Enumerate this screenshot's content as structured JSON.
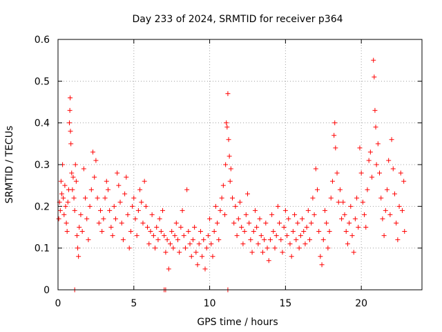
{
  "chart_data": {
    "type": "scatter",
    "title": "Day 233 of 2024, SRMTID for receiver p364",
    "xlabel": "GPS time / hours",
    "ylabel": "SRMTID / TECUs",
    "xlim": [
      0,
      24
    ],
    "ylim": [
      0,
      0.6
    ],
    "xticks": [
      0,
      5,
      10,
      15,
      20
    ],
    "xtick_labels": [
      "0",
      "5",
      "10",
      "15",
      "20"
    ],
    "yticks": [
      0,
      0.1,
      0.2,
      0.3,
      0.4,
      0.5,
      0.6
    ],
    "ytick_labels": [
      "0",
      "0.1",
      "0.2",
      "0.3",
      "0.4",
      "0.5",
      "0.6"
    ],
    "grid": true,
    "marker": "plus",
    "color": "#ff0000",
    "series": [
      {
        "name": "SRMTID",
        "points": [
          [
            0.05,
            0.17
          ],
          [
            0.1,
            0.21
          ],
          [
            0.15,
            0.19
          ],
          [
            0.2,
            0.26
          ],
          [
            0.25,
            0.23
          ],
          [
            0.3,
            0.3
          ],
          [
            0.35,
            0.22
          ],
          [
            0.4,
            0.18
          ],
          [
            0.45,
            0.25
          ],
          [
            0.5,
            0.2
          ],
          [
            0.55,
            0.16
          ],
          [
            0.6,
            0.14
          ],
          [
            0.65,
            0.21
          ],
          [
            0.7,
            0.24
          ],
          [
            0.75,
            0.4
          ],
          [
            0.78,
            0.43
          ],
          [
            0.8,
            0.46
          ],
          [
            0.82,
            0.38
          ],
          [
            0.85,
            0.35
          ],
          [
            0.9,
            0.28
          ],
          [
            0.95,
            0.24
          ],
          [
            1.0,
            0.27
          ],
          [
            1.05,
            0.22
          ],
          [
            1.1,
            0.19
          ],
          [
            1.15,
            0.3
          ],
          [
            1.2,
            0.26
          ],
          [
            1.25,
            0.13
          ],
          [
            1.3,
            0.1
          ],
          [
            1.35,
            0.08
          ],
          [
            1.4,
            0.15
          ],
          [
            1.5,
            0.18
          ],
          [
            1.6,
            0.14
          ],
          [
            1.7,
            0.29
          ],
          [
            1.8,
            0.22
          ],
          [
            1.9,
            0.17
          ],
          [
            2.0,
            0.12
          ],
          [
            2.1,
            0.2
          ],
          [
            2.2,
            0.24
          ],
          [
            2.3,
            0.33
          ],
          [
            2.4,
            0.27
          ],
          [
            2.5,
            0.31
          ],
          [
            2.6,
            0.22
          ],
          [
            2.7,
            0.16
          ],
          [
            2.8,
            0.19
          ],
          [
            2.9,
            0.14
          ],
          [
            3.0,
            0.17
          ],
          [
            3.1,
            0.22
          ],
          [
            3.2,
            0.26
          ],
          [
            3.3,
            0.24
          ],
          [
            3.4,
            0.19
          ],
          [
            3.5,
            0.15
          ],
          [
            3.6,
            0.13
          ],
          [
            3.7,
            0.2
          ],
          [
            3.8,
            0.17
          ],
          [
            3.9,
            0.28
          ],
          [
            4.0,
            0.25
          ],
          [
            4.1,
            0.21
          ],
          [
            4.2,
            0.16
          ],
          [
            4.3,
            0.12
          ],
          [
            4.4,
            0.23
          ],
          [
            4.5,
            0.27
          ],
          [
            4.6,
            0.18
          ],
          [
            4.7,
            0.1
          ],
          [
            4.8,
            0.14
          ],
          [
            4.9,
            0.2
          ],
          [
            5.0,
            0.22
          ],
          [
            5.1,
            0.17
          ],
          [
            5.2,
            0.13
          ],
          [
            5.3,
            0.19
          ],
          [
            5.4,
            0.24
          ],
          [
            5.5,
            0.21
          ],
          [
            5.6,
            0.16
          ],
          [
            5.7,
            0.26
          ],
          [
            5.8,
            0.2
          ],
          [
            5.9,
            0.15
          ],
          [
            6.0,
            0.11
          ],
          [
            6.1,
            0.14
          ],
          [
            6.2,
            0.18
          ],
          [
            6.3,
            0.13
          ],
          [
            6.4,
            0.1
          ],
          [
            6.5,
            0.15
          ],
          [
            6.6,
            0.12
          ],
          [
            6.7,
            0.17
          ],
          [
            6.8,
            0.14
          ],
          [
            6.9,
            0.19
          ],
          [
            7.0,
            0.13
          ],
          [
            7.1,
            0.09
          ],
          [
            7.2,
            0.12
          ],
          [
            7.3,
            0.05
          ],
          [
            7.4,
            0.11
          ],
          [
            7.5,
            0.14
          ],
          [
            7.6,
            0.1
          ],
          [
            7.7,
            0.13
          ],
          [
            7.8,
            0.16
          ],
          [
            7.9,
            0.12
          ],
          [
            8.0,
            0.09
          ],
          [
            8.1,
            0.15
          ],
          [
            8.2,
            0.19
          ],
          [
            8.3,
            0.13
          ],
          [
            8.4,
            0.1
          ],
          [
            8.5,
            0.24
          ],
          [
            8.6,
            0.14
          ],
          [
            8.7,
            0.11
          ],
          [
            8.8,
            0.08
          ],
          [
            8.9,
            0.12
          ],
          [
            9.0,
            0.15
          ],
          [
            9.1,
            0.09
          ],
          [
            9.2,
            0.06
          ],
          [
            9.3,
            0.11
          ],
          [
            9.4,
            0.14
          ],
          [
            9.5,
            0.08
          ],
          [
            9.6,
            0.12
          ],
          [
            9.7,
            0.05
          ],
          [
            9.8,
            0.1
          ],
          [
            9.9,
            0.13
          ],
          [
            10.0,
            0.17
          ],
          [
            10.1,
            0.11
          ],
          [
            10.2,
            0.08
          ],
          [
            10.3,
            0.14
          ],
          [
            10.4,
            0.2
          ],
          [
            10.5,
            0.16
          ],
          [
            10.6,
            0.12
          ],
          [
            10.7,
            0.19
          ],
          [
            10.8,
            0.22
          ],
          [
            10.9,
            0.25
          ],
          [
            11.0,
            0.18
          ],
          [
            11.05,
            0.3
          ],
          [
            11.1,
            0.4
          ],
          [
            11.15,
            0.39
          ],
          [
            11.2,
            0.47
          ],
          [
            11.25,
            0.36
          ],
          [
            11.3,
            0.32
          ],
          [
            11.35,
            0.26
          ],
          [
            11.4,
            0.29
          ],
          [
            11.5,
            0.22
          ],
          [
            11.6,
            0.16
          ],
          [
            11.7,
            0.2
          ],
          [
            11.8,
            0.13
          ],
          [
            11.9,
            0.17
          ],
          [
            12.0,
            0.21
          ],
          [
            12.1,
            0.15
          ],
          [
            12.2,
            0.11
          ],
          [
            12.3,
            0.14
          ],
          [
            12.4,
            0.18
          ],
          [
            12.5,
            0.23
          ],
          [
            12.6,
            0.16
          ],
          [
            12.7,
            0.12
          ],
          [
            12.8,
            0.09
          ],
          [
            12.9,
            0.14
          ],
          [
            13.0,
            0.19
          ],
          [
            13.1,
            0.15
          ],
          [
            13.2,
            0.11
          ],
          [
            13.3,
            0.17
          ],
          [
            13.4,
            0.13
          ],
          [
            13.5,
            0.09
          ],
          [
            13.6,
            0.12
          ],
          [
            13.7,
            0.16
          ],
          [
            13.8,
            0.1
          ],
          [
            13.9,
            0.07
          ],
          [
            14.0,
            0.12
          ],
          [
            14.1,
            0.18
          ],
          [
            14.2,
            0.14
          ],
          [
            14.3,
            0.1
          ],
          [
            14.4,
            0.13
          ],
          [
            14.5,
            0.2
          ],
          [
            14.6,
            0.16
          ],
          [
            14.7,
            0.12
          ],
          [
            14.8,
            0.09
          ],
          [
            14.9,
            0.15
          ],
          [
            15.0,
            0.19
          ],
          [
            15.1,
            0.13
          ],
          [
            15.2,
            0.17
          ],
          [
            15.3,
            0.11
          ],
          [
            15.4,
            0.08
          ],
          [
            15.5,
            0.14
          ],
          [
            15.6,
            0.18
          ],
          [
            15.7,
            0.12
          ],
          [
            15.8,
            0.16
          ],
          [
            15.9,
            0.1
          ],
          [
            16.0,
            0.13
          ],
          [
            16.1,
            0.17
          ],
          [
            16.2,
            0.14
          ],
          [
            16.3,
            0.11
          ],
          [
            16.4,
            0.15
          ],
          [
            16.5,
            0.19
          ],
          [
            16.6,
            0.12
          ],
          [
            16.7,
            0.16
          ],
          [
            16.8,
            0.22
          ],
          [
            16.9,
            0.18
          ],
          [
            17.0,
            0.29
          ],
          [
            17.1,
            0.24
          ],
          [
            17.2,
            0.14
          ],
          [
            17.3,
            0.08
          ],
          [
            17.4,
            0.06
          ],
          [
            17.5,
            0.12
          ],
          [
            17.6,
            0.19
          ],
          [
            17.7,
            0.16
          ],
          [
            17.8,
            0.1
          ],
          [
            17.9,
            0.14
          ],
          [
            18.0,
            0.22
          ],
          [
            18.1,
            0.26
          ],
          [
            18.2,
            0.37
          ],
          [
            18.25,
            0.4
          ],
          [
            18.3,
            0.34
          ],
          [
            18.4,
            0.28
          ],
          [
            18.5,
            0.21
          ],
          [
            18.6,
            0.24
          ],
          [
            18.7,
            0.17
          ],
          [
            18.8,
            0.21
          ],
          [
            18.9,
            0.18
          ],
          [
            19.0,
            0.14
          ],
          [
            19.1,
            0.11
          ],
          [
            19.2,
            0.16
          ],
          [
            19.3,
            0.2
          ],
          [
            19.4,
            0.13
          ],
          [
            19.5,
            0.09
          ],
          [
            19.6,
            0.17
          ],
          [
            19.7,
            0.22
          ],
          [
            19.8,
            0.15
          ],
          [
            19.9,
            0.34
          ],
          [
            20.0,
            0.28
          ],
          [
            20.1,
            0.21
          ],
          [
            20.2,
            0.18
          ],
          [
            20.3,
            0.15
          ],
          [
            20.4,
            0.24
          ],
          [
            20.5,
            0.31
          ],
          [
            20.6,
            0.33
          ],
          [
            20.7,
            0.27
          ],
          [
            20.8,
            0.55
          ],
          [
            20.85,
            0.51
          ],
          [
            20.9,
            0.43
          ],
          [
            20.95,
            0.39
          ],
          [
            21.0,
            0.3
          ],
          [
            21.1,
            0.35
          ],
          [
            21.2,
            0.28
          ],
          [
            21.3,
            0.22
          ],
          [
            21.4,
            0.17
          ],
          [
            21.5,
            0.13
          ],
          [
            21.6,
            0.19
          ],
          [
            21.7,
            0.24
          ],
          [
            21.8,
            0.31
          ],
          [
            21.9,
            0.18
          ],
          [
            22.0,
            0.36
          ],
          [
            22.1,
            0.29
          ],
          [
            22.2,
            0.23
          ],
          [
            22.3,
            0.16
          ],
          [
            22.4,
            0.12
          ],
          [
            22.5,
            0.2
          ],
          [
            22.6,
            0.28
          ],
          [
            22.7,
            0.19
          ],
          [
            22.8,
            0.26
          ],
          [
            22.85,
            0.14
          ]
        ],
        "zero_markers": [
          1.1,
          7.0,
          7.1,
          11.2
        ]
      }
    ]
  }
}
